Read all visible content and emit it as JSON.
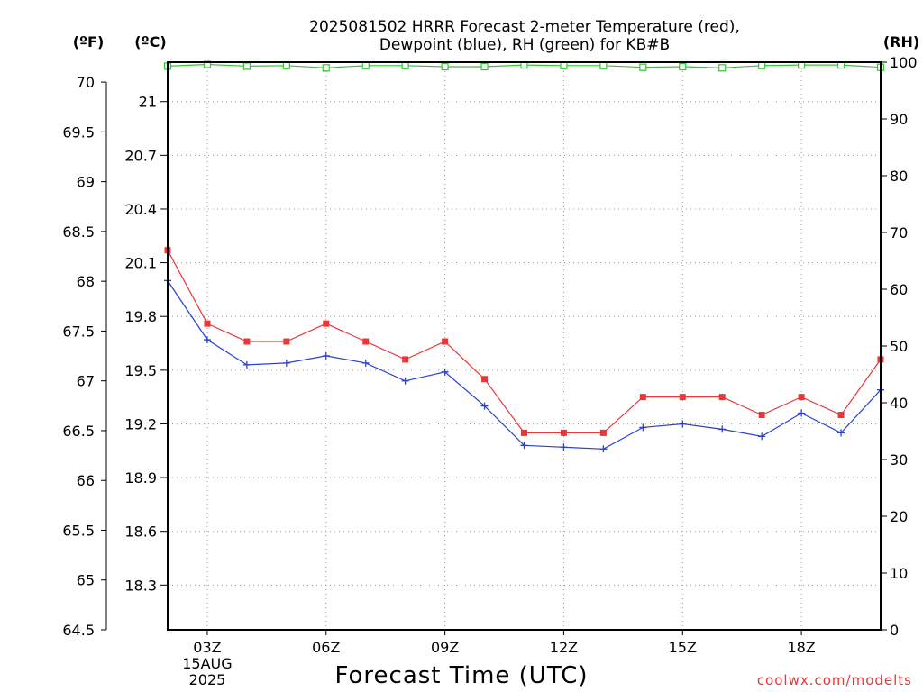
{
  "chart_data": {
    "type": "line",
    "title": [
      "2025081502 HRRR Forecast 2-meter Temperature (red),",
      "Dewpoint (blue), RH (green) for KB#B"
    ],
    "xlabel": "Forecast Time (UTC)",
    "credit": "coolwx.com/modelts",
    "units": {
      "fahrenheit": "(ºF)",
      "celsius": "(ºC)",
      "rh": "(RH)"
    },
    "x_hours_utc": [
      2,
      3,
      4,
      5,
      6,
      7,
      8,
      9,
      10,
      11,
      12,
      13,
      14,
      15,
      16,
      17,
      18,
      19,
      20
    ],
    "x_ticks": [
      {
        "hour": 3,
        "label": "03Z",
        "sublabels": [
          "15AUG",
          "2025"
        ]
      },
      {
        "hour": 6,
        "label": "06Z",
        "sublabels": []
      },
      {
        "hour": 9,
        "label": "09Z",
        "sublabels": []
      },
      {
        "hour": 12,
        "label": "12Z",
        "sublabels": []
      },
      {
        "hour": 15,
        "label": "15Z",
        "sublabels": []
      },
      {
        "hour": 18,
        "label": "18Z",
        "sublabels": []
      }
    ],
    "x_range": [
      2,
      20
    ],
    "left_axis_f": {
      "range": [
        64.5,
        70.2
      ],
      "ticks": [
        "64.5",
        "65",
        "65.5",
        "66",
        "66.5",
        "67",
        "67.5",
        "68",
        "68.5",
        "69",
        "69.5",
        "70"
      ]
    },
    "left_axis_c": {
      "range": [
        18.05,
        21.22
      ],
      "ticks": [
        "18.3",
        "18.6",
        "18.9",
        "19.2",
        "19.5",
        "19.8",
        "20.1",
        "20.4",
        "20.7",
        "21"
      ]
    },
    "right_axis_rh": {
      "range": [
        0,
        100
      ],
      "ticks": [
        "0",
        "10",
        "20",
        "30",
        "40",
        "50",
        "60",
        "70",
        "80",
        "90",
        "100"
      ]
    },
    "grid": true,
    "series": [
      {
        "name": "Temperature",
        "axis": "c",
        "color": "#e8373a",
        "marker": "filled-square",
        "values": [
          20.17,
          19.76,
          19.66,
          19.66,
          19.76,
          19.66,
          19.56,
          19.66,
          19.45,
          19.15,
          19.15,
          19.15,
          19.35,
          19.35,
          19.35,
          19.25,
          19.35,
          19.25,
          19.56
        ]
      },
      {
        "name": "Dewpoint",
        "axis": "c",
        "color": "#2a3fd6",
        "marker": "plus",
        "values": [
          20.0,
          19.67,
          19.53,
          19.54,
          19.58,
          19.54,
          19.44,
          19.49,
          19.3,
          19.08,
          19.07,
          19.06,
          19.18,
          19.2,
          19.17,
          19.13,
          19.26,
          19.15,
          19.39
        ]
      },
      {
        "name": "RH",
        "axis": "rh",
        "color": "#2ec82e",
        "marker": "open-square",
        "values": [
          99.3,
          99.6,
          99.3,
          99.4,
          99.0,
          99.4,
          99.4,
          99.2,
          99.2,
          99.5,
          99.4,
          99.4,
          99.1,
          99.2,
          99.0,
          99.4,
          99.5,
          99.5,
          99.1
        ]
      }
    ]
  }
}
